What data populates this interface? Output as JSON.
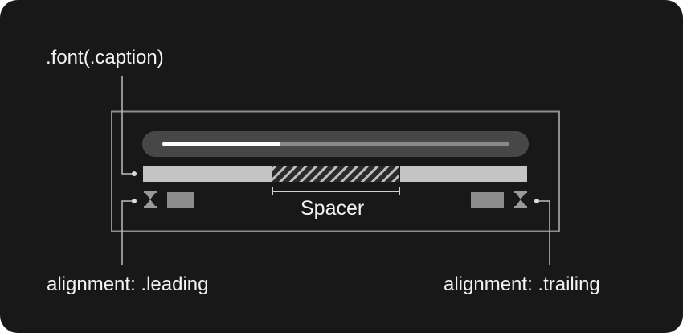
{
  "labels": {
    "font": ".font(.caption)",
    "spacer": "Spacer",
    "leading": "alignment: .leading",
    "trailing": "alignment: .trailing"
  },
  "progress": {
    "value": 0.34
  },
  "colors": {
    "background": "#181818",
    "frame": "#8e8e8e",
    "track_pill": "#474747",
    "track_line": "#8a8a8a",
    "progress_fill": "#ffffff",
    "caption_bar": "#c4c4c4",
    "hatch_bg": "#2a2a2a",
    "hatch_line": "#bdbdbd",
    "text_block": "#8c8c8c",
    "icon": "#9a9a9a",
    "text": "#f2f2f2"
  },
  "icons": {
    "leading": "hourglass-icon",
    "trailing": "hourglass-icon"
  }
}
